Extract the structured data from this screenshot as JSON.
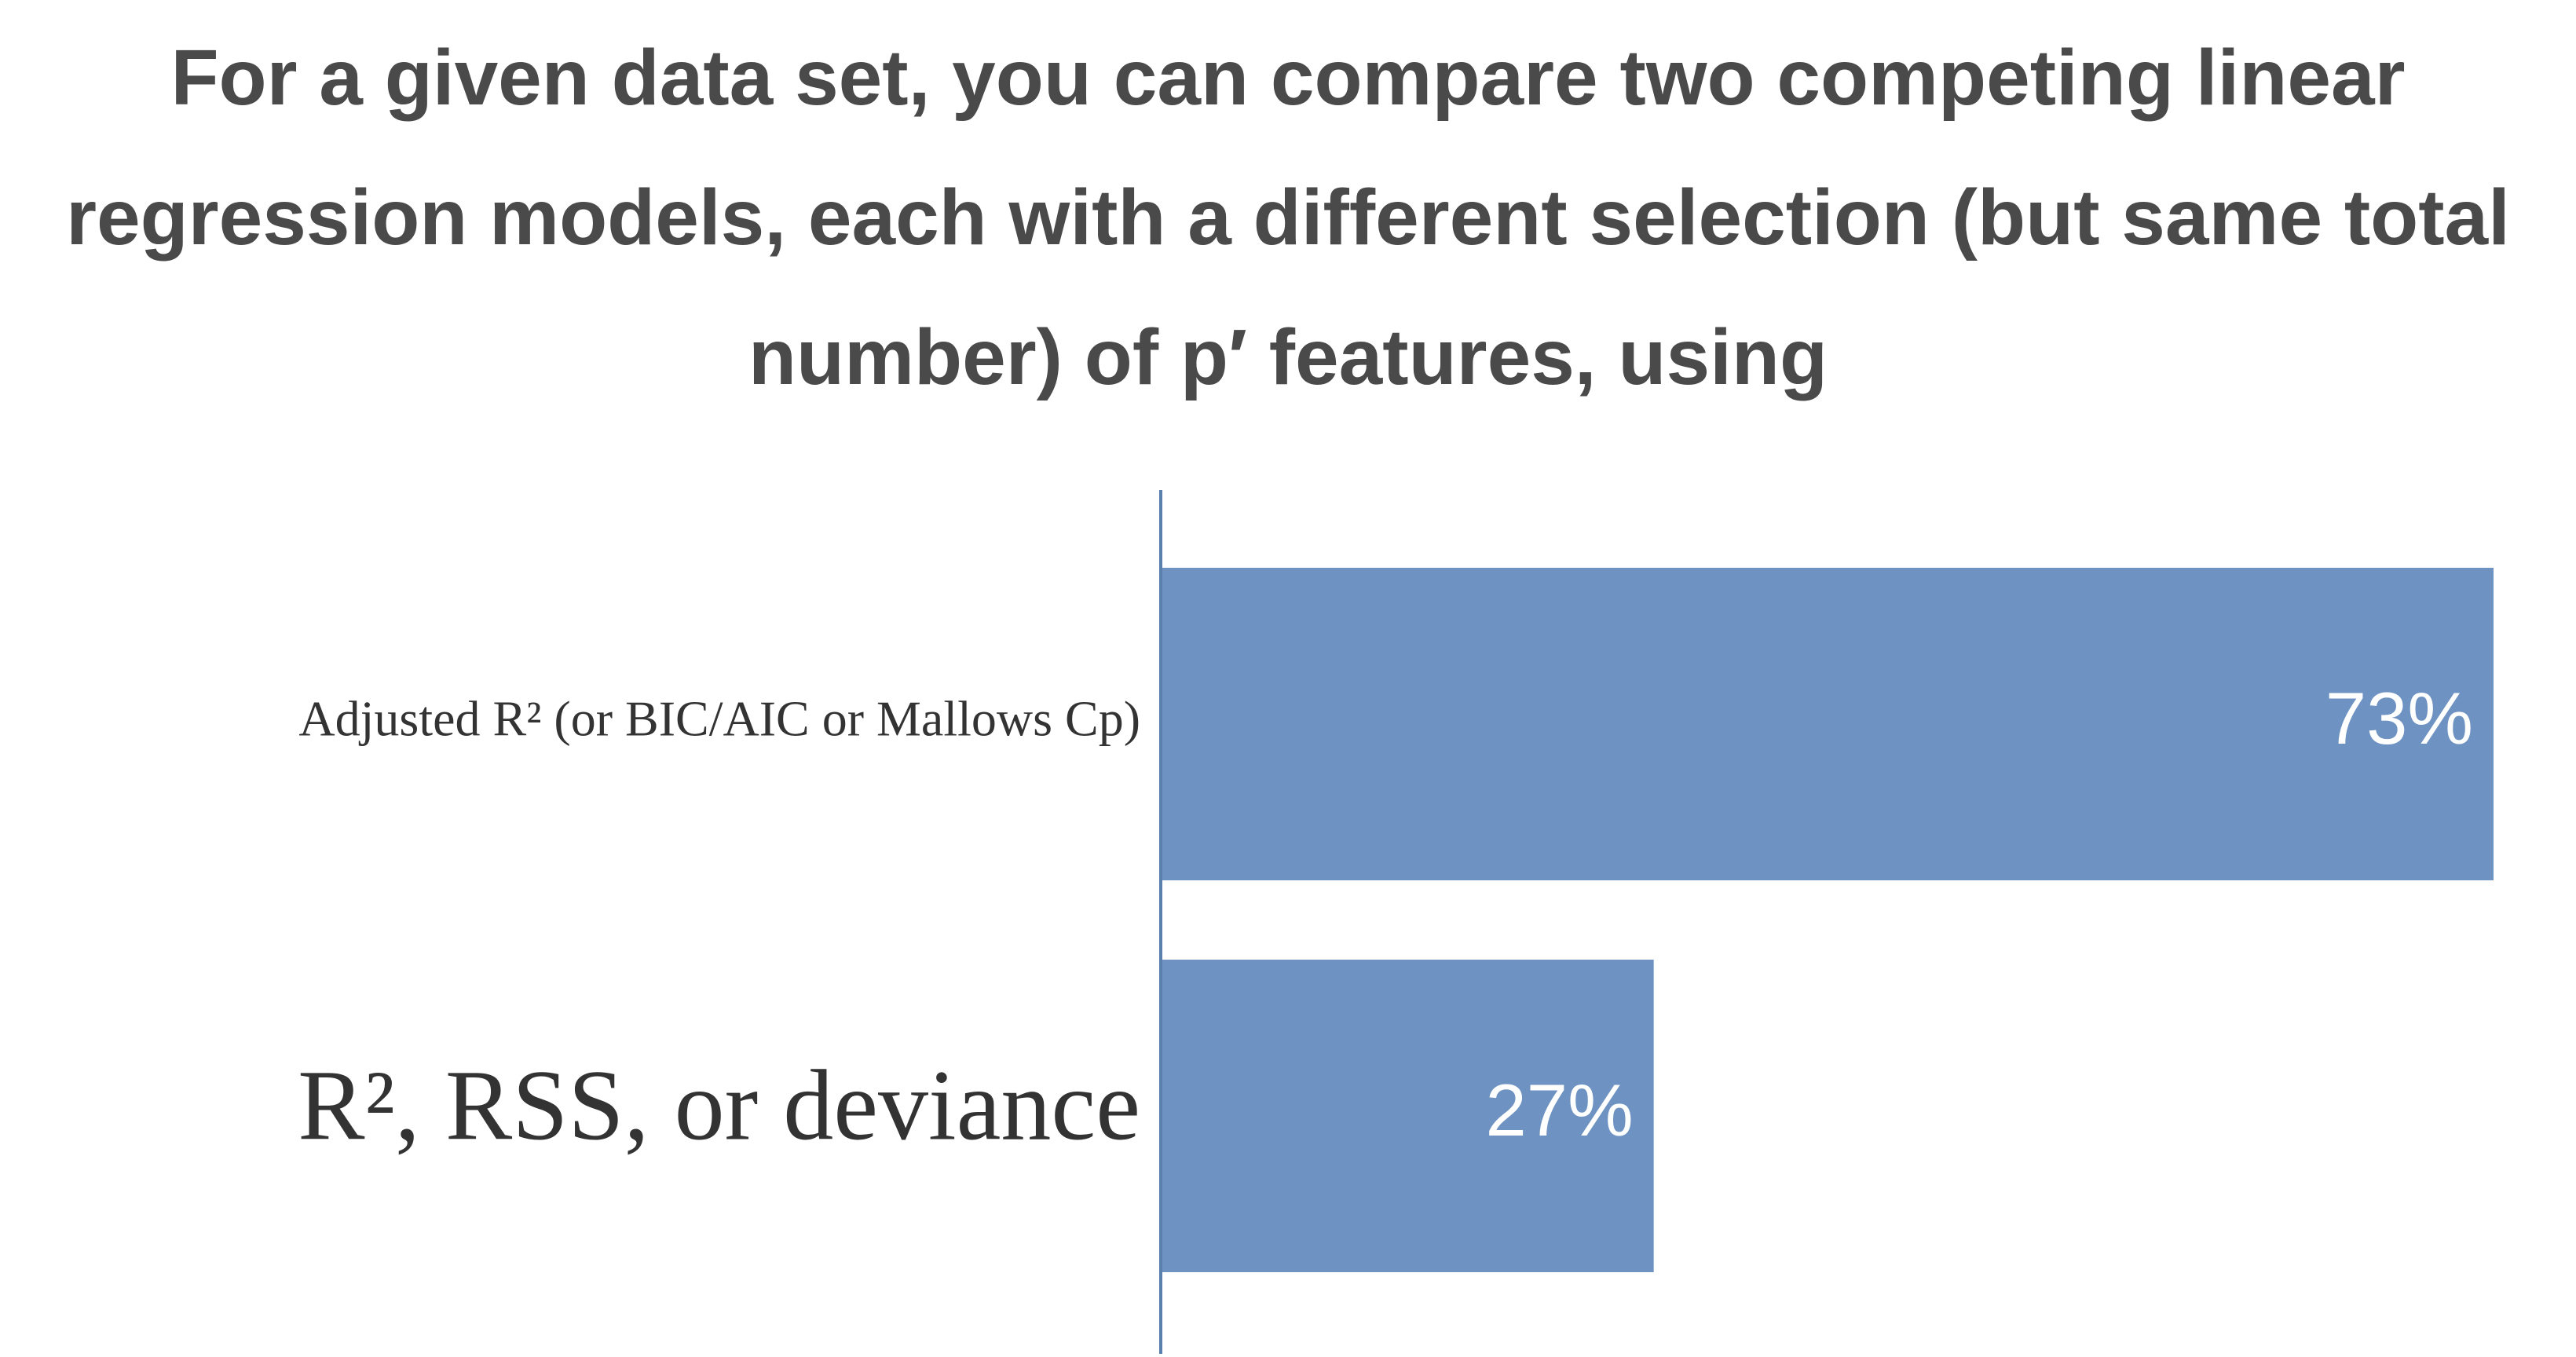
{
  "chart_data": {
    "type": "barh",
    "title": "For a given data set, you can compare two competing linear regression models, each with a different selection (but same total number) of p′ features, using",
    "categories": [
      "Adjusted R² (or BIC/AIC or Mallows Cp)",
      "R², RSS, or deviance"
    ],
    "values": [
      73,
      27
    ],
    "value_labels": [
      "73%",
      "27%"
    ],
    "color": "#6e93c2",
    "xlim": [
      0,
      73
    ]
  }
}
